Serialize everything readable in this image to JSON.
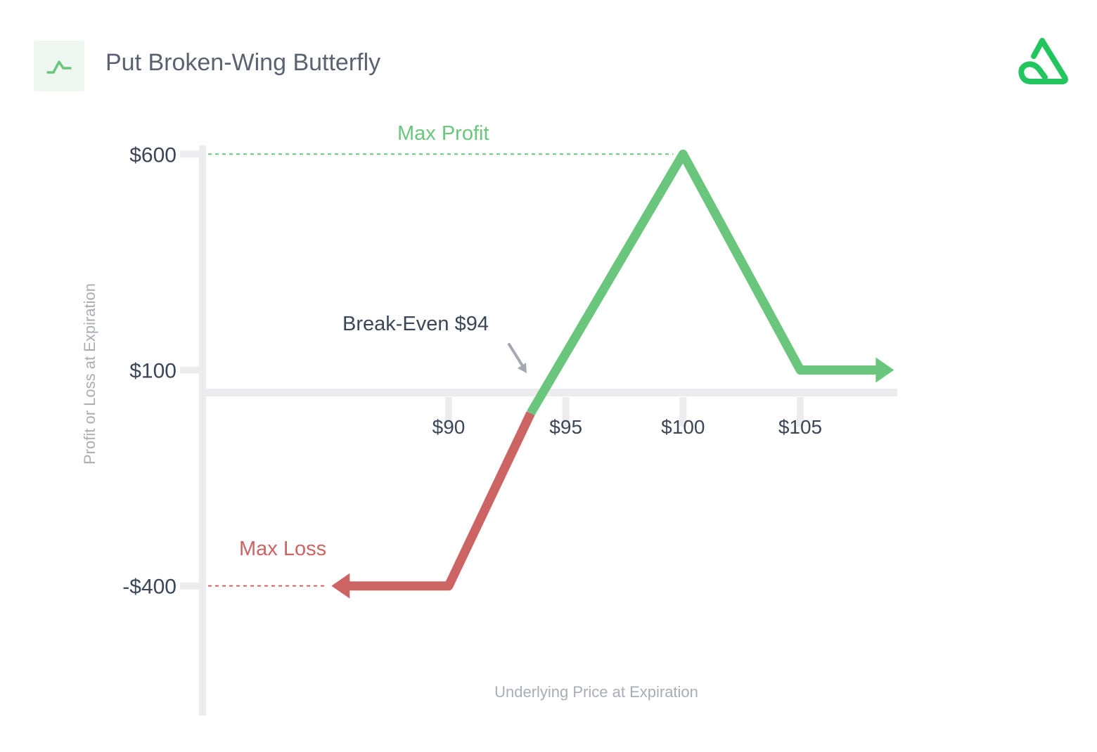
{
  "header": {
    "title": "Put Broken-Wing Butterfly",
    "icon": "line-chart-icon",
    "brand_logo": "brand-logo-icon"
  },
  "colors": {
    "profit": "#6ac67d",
    "loss": "#cc6464",
    "axis": "#ececee",
    "text_dark": "#3b4656",
    "text_muted": "#a8aeb6",
    "arrow_gray": "#a3a9b0"
  },
  "chart_data": {
    "type": "line",
    "xlabel": "Underlying Price at Expiration",
    "ylabel": "Profit or Loss at Expiration",
    "x_ticks": [
      {
        "value": 90,
        "label": "$90"
      },
      {
        "value": 95,
        "label": "$95"
      },
      {
        "value": 100,
        "label": "$100"
      },
      {
        "value": 105,
        "label": "$105"
      }
    ],
    "y_ticks": [
      {
        "value": 600,
        "label": "$600"
      },
      {
        "value": 100,
        "label": "$100"
      },
      {
        "value": -400,
        "label": "-$400"
      }
    ],
    "xlim": [
      79.5,
      109.5
    ],
    "ylim": [
      -700,
      620
    ],
    "series": [
      {
        "points": [
          {
            "x": 85,
            "y": -400
          },
          {
            "x": 90,
            "y": -400
          },
          {
            "x": 93.5,
            "y": 0
          },
          {
            "x": 100,
            "y": 600
          },
          {
            "x": 105,
            "y": 100
          },
          {
            "x": 109,
            "y": 100
          }
        ]
      }
    ],
    "annotations": {
      "max_profit": {
        "label": "Max Profit",
        "value": 600
      },
      "max_loss": {
        "label": "Max Loss",
        "value": -400
      },
      "break_even": {
        "label": "Break-Even $94",
        "value": 94
      }
    },
    "grid": false
  }
}
